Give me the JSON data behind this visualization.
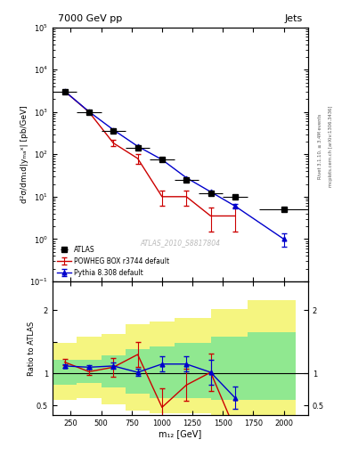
{
  "title_left": "7000 GeV pp",
  "title_right": "Jets",
  "ylabel_main": "d²σ/dm₁d|yₘₐˣ| [pb/GeV]",
  "ylabel_ratio": "Ratio to ATLAS",
  "xlabel": "m₁₂ [GeV]",
  "watermark": "ATLAS_2010_S8817804",
  "right_label": "mcplots.cern.ch [arXiv:1306.3436]",
  "right_label2": "Rivet 3.1.10, ≥ 3.4M events",
  "atlas_x": [
    200,
    400,
    600,
    800,
    1000,
    1200,
    1400,
    1600,
    2000
  ],
  "atlas_y": [
    3000,
    1000,
    350,
    140,
    75,
    25,
    12,
    10,
    5
  ],
  "atlas_xerr": [
    100,
    100,
    100,
    100,
    100,
    100,
    100,
    100,
    200
  ],
  "atlas_yerr_lo": [
    0,
    0,
    0,
    0,
    0,
    0,
    0,
    0,
    0
  ],
  "atlas_yerr_hi": [
    0,
    0,
    0,
    0,
    0,
    0,
    0,
    0,
    0
  ],
  "powheg_x": [
    200,
    400,
    600,
    800,
    1000,
    1200,
    1400,
    1600
  ],
  "powheg_y": [
    3100,
    1000,
    185,
    80,
    10,
    10,
    3.5,
    3.5
  ],
  "powheg_yerr_lo": [
    0,
    0,
    30,
    20,
    4,
    4,
    2.0,
    2.0
  ],
  "powheg_yerr_hi": [
    0,
    0,
    30,
    20,
    4,
    4,
    2.0,
    2.0
  ],
  "pythia_x": [
    200,
    400,
    600,
    800,
    1000,
    1200,
    1400,
    1600,
    2000
  ],
  "pythia_y": [
    3100,
    1020,
    380,
    155,
    75,
    28,
    13,
    6,
    1.0
  ],
  "pythia_yerr_lo": [
    0,
    0,
    0,
    0,
    0,
    0,
    0,
    0.8,
    0.35
  ],
  "pythia_yerr_hi": [
    0,
    0,
    0,
    0,
    0,
    0,
    0,
    0.8,
    0.35
  ],
  "ratio_x": [
    200,
    400,
    600,
    800,
    1000,
    1200,
    1400,
    1600
  ],
  "ratio_powheg": [
    1.18,
    1.03,
    1.1,
    1.3,
    0.47,
    0.82,
    1.02,
    0.12
  ],
  "ratio_powheg_err": [
    0.05,
    0.05,
    0.15,
    0.2,
    0.3,
    0.25,
    0.3,
    0.12
  ],
  "ratio_pythia": [
    1.12,
    1.1,
    1.12,
    1.02,
    1.15,
    1.15,
    1.02,
    0.62
  ],
  "ratio_pythia_err": [
    0.03,
    0.03,
    0.05,
    0.06,
    0.12,
    0.12,
    0.2,
    0.18
  ],
  "band_x_edges": [
    100,
    300,
    500,
    700,
    900,
    1100,
    1400,
    1700,
    2100
  ],
  "band_green_lo": [
    0.82,
    0.85,
    0.78,
    0.68,
    0.62,
    0.62,
    0.58,
    0.58
  ],
  "band_green_hi": [
    1.22,
    1.22,
    1.28,
    1.38,
    1.42,
    1.48,
    1.58,
    1.65
  ],
  "band_yellow_lo": [
    0.58,
    0.62,
    0.52,
    0.42,
    0.38,
    0.38,
    0.32,
    0.32
  ],
  "band_yellow_hi": [
    1.48,
    1.58,
    1.62,
    1.78,
    1.82,
    1.88,
    2.02,
    2.15
  ],
  "main_ylim": [
    0.1,
    100000.0
  ],
  "ratio_ylim": [
    0.35,
    2.45
  ],
  "xlim": [
    100,
    2200
  ],
  "color_atlas": "#000000",
  "color_powheg": "#cc0000",
  "color_pythia": "#0000cc",
  "color_green": "#90e890",
  "color_yellow": "#f5f580",
  "bg_color": "#ffffff"
}
